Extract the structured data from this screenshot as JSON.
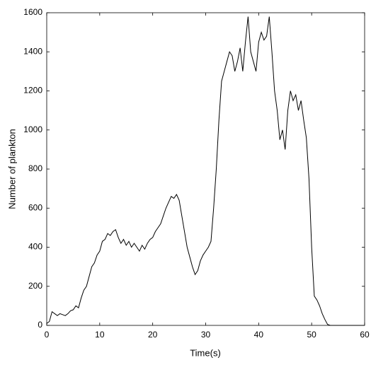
{
  "chart_data": {
    "type": "line",
    "xlabel": "Time(s)",
    "ylabel": "Number of plankton",
    "x": [
      0,
      0.5,
      1,
      1.5,
      2,
      2.5,
      3,
      3.5,
      4,
      4.5,
      5,
      5.5,
      6,
      6.5,
      7,
      7.5,
      8,
      8.5,
      9,
      9.5,
      10,
      10.5,
      11,
      11.5,
      12,
      12.5,
      13,
      13.5,
      14,
      14.5,
      15,
      15.5,
      16,
      16.5,
      17,
      17.5,
      18,
      18.5,
      19,
      19.5,
      20,
      20.5,
      21,
      21.5,
      22,
      22.5,
      23,
      23.5,
      24,
      24.5,
      25,
      25.5,
      26,
      26.5,
      27,
      27.5,
      28,
      28.5,
      29,
      29.5,
      30,
      30.5,
      31,
      31.5,
      32,
      32.5,
      33,
      33.5,
      34,
      34.5,
      35,
      35.5,
      36,
      36.5,
      37,
      37.5,
      38,
      38.5,
      39,
      39.5,
      40,
      40.5,
      41,
      41.5,
      42,
      42.5,
      43,
      43.5,
      44,
      44.5,
      45,
      45.5,
      46,
      46.5,
      47,
      47.5,
      48,
      48.5,
      49,
      49.5,
      50,
      50.5,
      51,
      51.5,
      52,
      52.5,
      53,
      53.5,
      54,
      56,
      58,
      60
    ],
    "series": [
      {
        "name": "plankton",
        "color": "#000000",
        "values": [
          10,
          20,
          70,
          60,
          50,
          60,
          55,
          50,
          60,
          75,
          80,
          100,
          90,
          140,
          180,
          200,
          250,
          300,
          320,
          360,
          380,
          430,
          440,
          470,
          460,
          480,
          490,
          450,
          420,
          440,
          410,
          430,
          400,
          420,
          400,
          380,
          410,
          390,
          420,
          440,
          450,
          480,
          500,
          520,
          560,
          600,
          630,
          660,
          650,
          670,
          640,
          560,
          480,
          400,
          350,
          300,
          260,
          280,
          330,
          360,
          380,
          400,
          430,
          600,
          800,
          1050,
          1250,
          1300,
          1350,
          1400,
          1380,
          1300,
          1350,
          1420,
          1300,
          1450,
          1580,
          1400,
          1350,
          1300,
          1450,
          1500,
          1460,
          1480,
          1580,
          1400,
          1200,
          1100,
          950,
          1000,
          900,
          1100,
          1200,
          1150,
          1180,
          1100,
          1150,
          1050,
          960,
          750,
          400,
          150,
          130,
          100,
          60,
          30,
          5,
          0,
          0,
          0,
          0,
          0
        ]
      }
    ],
    "xlim": [
      0,
      60
    ],
    "xticks": [
      0,
      10,
      20,
      30,
      40,
      50,
      60
    ],
    "ylim": [
      0,
      1600
    ],
    "yticks": [
      0,
      200,
      400,
      600,
      800,
      1000,
      1200,
      1400,
      1600
    ]
  }
}
